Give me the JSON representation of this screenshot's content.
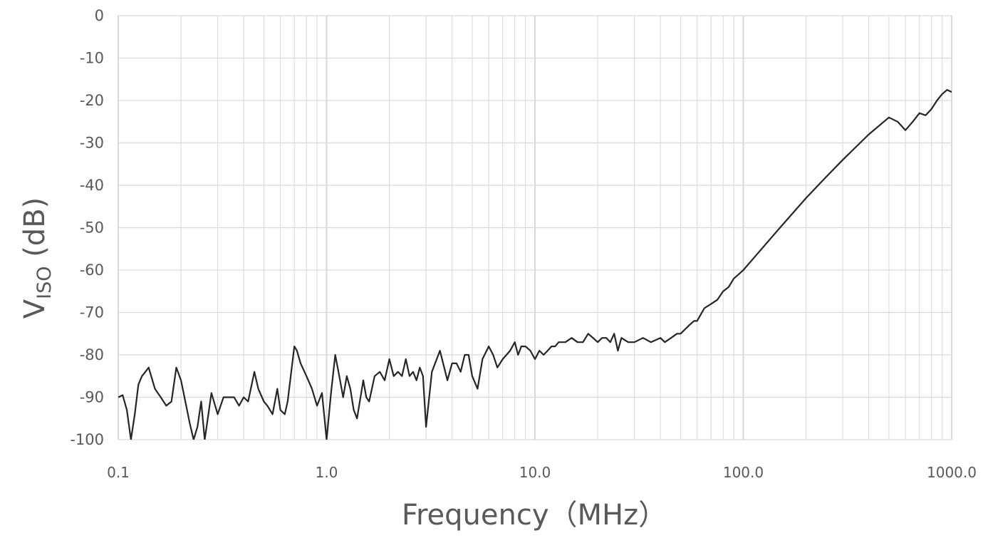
{
  "chart_data": {
    "type": "line",
    "xscale": "log",
    "xlim": [
      0.1,
      1000.0
    ],
    "ylim": [
      -100,
      0
    ],
    "x_ticks": [
      "0.1",
      "1.0",
      "10.0",
      "100.0",
      "1000.0"
    ],
    "y_ticks": [
      "0",
      "-10",
      "-20",
      "-30",
      "-40",
      "-50",
      "-60",
      "-70",
      "-80",
      "-90",
      "-100"
    ],
    "xlabel": "Frequency（MHz）",
    "ylabel_main": "V",
    "ylabel_sub": "ISO",
    "ylabel_suffix": " (dB)",
    "grid": true,
    "colors": {
      "line": "#262626",
      "grid": "#d9d9d9",
      "text": "#595959"
    },
    "series": [
      {
        "x": [
          0.1,
          0.105,
          0.11,
          0.115,
          0.12,
          0.125,
          0.13,
          0.135,
          0.14,
          0.15,
          0.16,
          0.17,
          0.18,
          0.19,
          0.2,
          0.21,
          0.22,
          0.23,
          0.24,
          0.25,
          0.26,
          0.28,
          0.3,
          0.32,
          0.34,
          0.36,
          0.38,
          0.4,
          0.42,
          0.45,
          0.47,
          0.5,
          0.52,
          0.55,
          0.58,
          0.6,
          0.63,
          0.65,
          0.7,
          0.72,
          0.75,
          0.8,
          0.85,
          0.9,
          0.95,
          1.0,
          1.05,
          1.1,
          1.15,
          1.2,
          1.25,
          1.3,
          1.35,
          1.4,
          1.5,
          1.55,
          1.6,
          1.7,
          1.8,
          1.9,
          2.0,
          2.1,
          2.2,
          2.3,
          2.4,
          2.5,
          2.6,
          2.7,
          2.8,
          2.9,
          3.0,
          3.2,
          3.5,
          3.8,
          4.0,
          4.2,
          4.4,
          4.6,
          4.8,
          5.0,
          5.3,
          5.6,
          6.0,
          6.3,
          6.6,
          7.0,
          7.3,
          7.6,
          8.0,
          8.3,
          8.6,
          9.0,
          9.5,
          10.0,
          10.5,
          11.0,
          11.5,
          12.0,
          12.5,
          13.0,
          14.0,
          15.0,
          16.0,
          17.0,
          18.0,
          19.0,
          20.0,
          21.0,
          22.0,
          23.0,
          24.0,
          25.0,
          26.0,
          28.0,
          30.0,
          33.0,
          36.0,
          40.0,
          42.0,
          45.0,
          48.0,
          50.0,
          55.0,
          58.0,
          60.0,
          65.0,
          70.0,
          75.0,
          80.0,
          85.0,
          90.0,
          95.0,
          100.0,
          120.0,
          150.0,
          200.0,
          250.0,
          300.0,
          400.0,
          500.0,
          550.0,
          600.0,
          650.0,
          700.0,
          750.0,
          800.0,
          850.0,
          900.0,
          950.0,
          1000.0
        ],
        "y": [
          -90.0,
          -89.5,
          -93.0,
          -100.0,
          -94.0,
          -87.0,
          -85.0,
          -84.0,
          -83.0,
          -88.0,
          -90.0,
          -92.0,
          -91.0,
          -83.0,
          -86.0,
          -91.0,
          -96.0,
          -100.0,
          -97.0,
          -91.0,
          -100.0,
          -89.0,
          -94.0,
          -90.0,
          -90.0,
          -90.0,
          -92.0,
          -90.0,
          -91.0,
          -84.0,
          -88.0,
          -91.0,
          -92.0,
          -94.0,
          -88.0,
          -93.0,
          -94.0,
          -91.0,
          -78.0,
          -79.0,
          -82.0,
          -85.0,
          -88.0,
          -92.0,
          -89.0,
          -100.0,
          -89.0,
          -80.0,
          -85.0,
          -90.0,
          -85.0,
          -88.0,
          -93.0,
          -95.0,
          -86.0,
          -90.0,
          -91.0,
          -85.0,
          -84.0,
          -86.0,
          -81.0,
          -85.0,
          -84.0,
          -85.0,
          -81.0,
          -85.0,
          -84.0,
          -86.0,
          -83.0,
          -85.0,
          -97.0,
          -84.0,
          -79.0,
          -86.0,
          -82.0,
          -82.0,
          -84.0,
          -80.0,
          -80.0,
          -85.0,
          -88.0,
          -81.0,
          -78.0,
          -80.0,
          -83.0,
          -81.0,
          -80.0,
          -79.0,
          -77.0,
          -80.0,
          -78.0,
          -78.0,
          -79.0,
          -81.0,
          -79.0,
          -80.0,
          -79.0,
          -78.0,
          -78.0,
          -77.0,
          -77.0,
          -76.0,
          -77.0,
          -77.0,
          -75.0,
          -76.0,
          -77.0,
          -76.0,
          -76.0,
          -77.0,
          -75.0,
          -79.0,
          -76.0,
          -77.0,
          -77.0,
          -76.0,
          -77.0,
          -76.0,
          -77.0,
          -76.0,
          -75.0,
          -75.0,
          -73.0,
          -72.0,
          -72.0,
          -69.0,
          -68.0,
          -67.0,
          -65.0,
          -64.0,
          -62.0,
          -61.0,
          -60.0,
          -55.5,
          -50.0,
          -43.0,
          -38.0,
          -34.0,
          -28.0,
          -24.0,
          -25.0,
          -27.0,
          -25.0,
          -23.0,
          -23.5,
          -22.0,
          -20.0,
          -18.5,
          -17.5,
          -18.0
        ]
      }
    ]
  }
}
